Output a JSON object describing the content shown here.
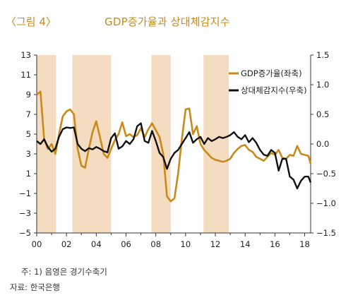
{
  "header": {
    "figure_label": "〈그림 4〉",
    "title": "GDP증가율과 상대체감지수"
  },
  "footnotes": {
    "note": "주: 1) 음영은 경기수축기",
    "source": "자료: 한국은행"
  },
  "colors": {
    "gdp": "#c98a1a",
    "sentiment": "#111111",
    "shade": "#f4dcc0",
    "axis": "#333333"
  },
  "chart_data": {
    "type": "line",
    "x_ticks": [
      "00",
      "02",
      "04",
      "06",
      "08",
      "10",
      "12",
      "14",
      "16",
      "18"
    ],
    "x_range": [
      2000,
      2018.4
    ],
    "y_left": {
      "range": [
        -5,
        13
      ],
      "ticks": [
        "13",
        "11",
        "9",
        "7",
        "5",
        "3",
        "1",
        "−1",
        "−3",
        "−5"
      ]
    },
    "y_right": {
      "range": [
        -1.5,
        1.5
      ],
      "ticks": [
        "1.5",
        "1.0",
        "0.5",
        "0.0",
        "−0.5",
        "−1.0",
        "−1.5"
      ]
    },
    "shaded_periods": [
      [
        2000.0,
        2001.3
      ],
      [
        2002.4,
        2005.0
      ],
      [
        2007.7,
        2009.0
      ],
      [
        2011.2,
        2012.9
      ]
    ],
    "grid": false,
    "legend_position": "top-right",
    "series": [
      {
        "name": "GDP증가율(좌축)",
        "axis": "left",
        "points": [
          [
            2000.0,
            9.0
          ],
          [
            2000.25,
            9.3
          ],
          [
            2000.5,
            4.5
          ],
          [
            2000.75,
            3.5
          ],
          [
            2001.0,
            4.0
          ],
          [
            2001.25,
            3.0
          ],
          [
            2001.5,
            5.0
          ],
          [
            2001.75,
            6.8
          ],
          [
            2002.0,
            7.3
          ],
          [
            2002.25,
            7.5
          ],
          [
            2002.5,
            7.0
          ],
          [
            2002.75,
            3.5
          ],
          [
            2003.0,
            1.8
          ],
          [
            2003.25,
            1.6
          ],
          [
            2003.5,
            3.5
          ],
          [
            2003.75,
            5.2
          ],
          [
            2004.0,
            6.3
          ],
          [
            2004.25,
            4.7
          ],
          [
            2004.5,
            3.0
          ],
          [
            2004.75,
            2.6
          ],
          [
            2005.0,
            3.5
          ],
          [
            2005.25,
            4.4
          ],
          [
            2005.5,
            5.0
          ],
          [
            2005.75,
            6.2
          ],
          [
            2006.0,
            4.8
          ],
          [
            2006.25,
            5.0
          ],
          [
            2006.5,
            4.7
          ],
          [
            2006.75,
            4.9
          ],
          [
            2007.0,
            5.6
          ],
          [
            2007.25,
            4.7
          ],
          [
            2007.5,
            5.5
          ],
          [
            2007.75,
            6.1
          ],
          [
            2008.0,
            5.4
          ],
          [
            2008.25,
            4.7
          ],
          [
            2008.5,
            3.0
          ],
          [
            2008.75,
            -1.3
          ],
          [
            2009.0,
            -1.8
          ],
          [
            2009.25,
            -1.5
          ],
          [
            2009.5,
            1.0
          ],
          [
            2009.75,
            4.5
          ],
          [
            2010.0,
            7.5
          ],
          [
            2010.25,
            7.6
          ],
          [
            2010.5,
            5.0
          ],
          [
            2010.75,
            5.8
          ],
          [
            2011.0,
            4.0
          ],
          [
            2011.25,
            3.4
          ],
          [
            2011.5,
            3.0
          ],
          [
            2011.75,
            2.6
          ],
          [
            2012.0,
            2.4
          ],
          [
            2012.25,
            2.3
          ],
          [
            2012.5,
            2.2
          ],
          [
            2012.75,
            2.3
          ],
          [
            2013.0,
            2.5
          ],
          [
            2013.25,
            3.1
          ],
          [
            2013.5,
            3.5
          ],
          [
            2013.75,
            3.8
          ],
          [
            2014.0,
            3.9
          ],
          [
            2014.25,
            3.4
          ],
          [
            2014.5,
            3.2
          ],
          [
            2014.75,
            2.7
          ],
          [
            2015.0,
            2.5
          ],
          [
            2015.25,
            2.3
          ],
          [
            2015.5,
            2.7
          ],
          [
            2015.75,
            3.1
          ],
          [
            2016.0,
            2.9
          ],
          [
            2016.25,
            3.4
          ],
          [
            2016.5,
            2.6
          ],
          [
            2016.75,
            2.5
          ],
          [
            2017.0,
            2.9
          ],
          [
            2017.25,
            2.8
          ],
          [
            2017.5,
            3.8
          ],
          [
            2017.75,
            3.0
          ],
          [
            2018.0,
            2.9
          ],
          [
            2018.25,
            2.8
          ],
          [
            2018.4,
            2.0
          ]
        ]
      },
      {
        "name": "상대체감지수(우축)",
        "axis": "right",
        "points": [
          [
            2000.0,
            0.05
          ],
          [
            2000.25,
            0.0
          ],
          [
            2000.5,
            0.08
          ],
          [
            2000.75,
            -0.05
          ],
          [
            2001.0,
            -0.13
          ],
          [
            2001.25,
            -0.08
          ],
          [
            2001.5,
            0.12
          ],
          [
            2001.75,
            0.25
          ],
          [
            2002.0,
            0.28
          ],
          [
            2002.25,
            0.27
          ],
          [
            2002.5,
            0.28
          ],
          [
            2002.75,
            0.0
          ],
          [
            2003.0,
            -0.08
          ],
          [
            2003.25,
            -0.12
          ],
          [
            2003.5,
            -0.07
          ],
          [
            2003.75,
            -0.09
          ],
          [
            2004.0,
            -0.05
          ],
          [
            2004.25,
            -0.08
          ],
          [
            2004.5,
            -0.12
          ],
          [
            2004.75,
            -0.14
          ],
          [
            2005.0,
            0.1
          ],
          [
            2005.25,
            0.18
          ],
          [
            2005.5,
            -0.08
          ],
          [
            2005.75,
            -0.04
          ],
          [
            2006.0,
            0.05
          ],
          [
            2006.25,
            0.0
          ],
          [
            2006.5,
            0.08
          ],
          [
            2006.75,
            0.3
          ],
          [
            2007.0,
            0.35
          ],
          [
            2007.25,
            0.05
          ],
          [
            2007.5,
            0.02
          ],
          [
            2007.75,
            0.22
          ],
          [
            2008.0,
            0.05
          ],
          [
            2008.25,
            -0.15
          ],
          [
            2008.5,
            -0.22
          ],
          [
            2008.75,
            -0.42
          ],
          [
            2009.0,
            -0.25
          ],
          [
            2009.25,
            -0.15
          ],
          [
            2009.5,
            -0.1
          ],
          [
            2009.75,
            0.0
          ],
          [
            2010.0,
            0.1
          ],
          [
            2010.25,
            0.2
          ],
          [
            2010.5,
            0.02
          ],
          [
            2010.75,
            0.08
          ],
          [
            2011.0,
            0.12
          ],
          [
            2011.25,
            0.0
          ],
          [
            2011.5,
            0.1
          ],
          [
            2011.75,
            0.05
          ],
          [
            2012.0,
            0.08
          ],
          [
            2012.25,
            0.12
          ],
          [
            2012.5,
            0.1
          ],
          [
            2012.75,
            0.12
          ],
          [
            2013.0,
            0.15
          ],
          [
            2013.25,
            0.2
          ],
          [
            2013.5,
            0.12
          ],
          [
            2013.75,
            0.08
          ],
          [
            2014.0,
            0.15
          ],
          [
            2014.25,
            0.03
          ],
          [
            2014.5,
            0.1
          ],
          [
            2014.75,
            0.02
          ],
          [
            2015.0,
            -0.1
          ],
          [
            2015.25,
            -0.18
          ],
          [
            2015.5,
            -0.2
          ],
          [
            2015.75,
            -0.1
          ],
          [
            2016.0,
            -0.15
          ],
          [
            2016.25,
            -0.45
          ],
          [
            2016.5,
            -0.25
          ],
          [
            2016.75,
            -0.25
          ],
          [
            2017.0,
            -0.55
          ],
          [
            2017.25,
            -0.6
          ],
          [
            2017.5,
            -0.75
          ],
          [
            2017.75,
            -0.62
          ],
          [
            2018.0,
            -0.55
          ],
          [
            2018.25,
            -0.55
          ],
          [
            2018.4,
            -0.65
          ]
        ]
      }
    ]
  }
}
